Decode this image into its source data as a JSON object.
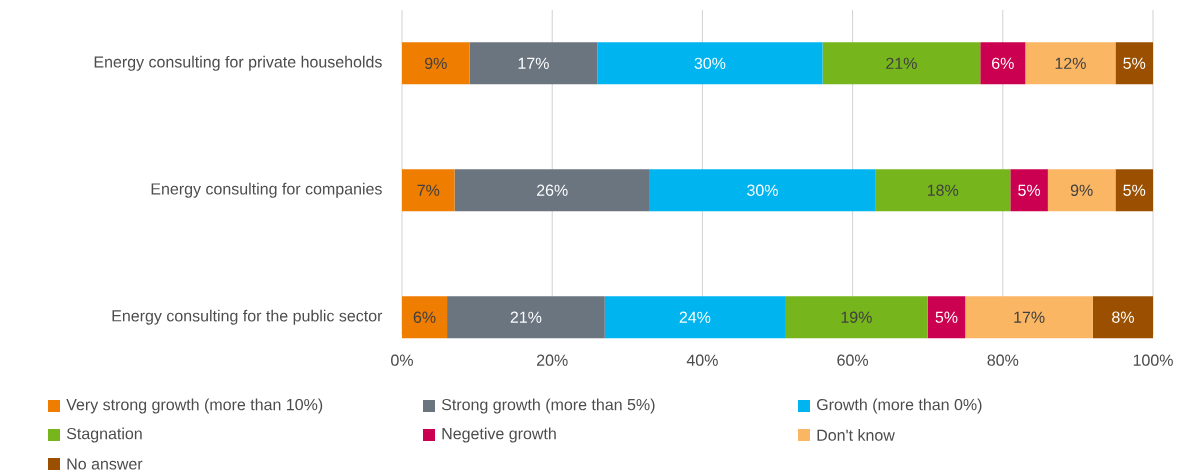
{
  "chart_data": {
    "type": "bar",
    "orientation": "horizontal",
    "stacked": true,
    "categories": [
      "Energy consulting for private households",
      "Energy consulting for companies",
      "Energy consulting for the public sector"
    ],
    "series": [
      {
        "name": "Very strong growth (more than 10%)",
        "color": "#ef7d00",
        "values": [
          9,
          7,
          6
        ],
        "value_labels": [
          "9%",
          "7%",
          "6%"
        ]
      },
      {
        "name": "Strong growth (more than 5%)",
        "color": "#6b7580",
        "values": [
          17,
          26,
          21
        ],
        "value_labels": [
          "17%",
          "26%",
          "21%"
        ]
      },
      {
        "name": "Growth (more than 0%)",
        "color": "#00b4f0",
        "values": [
          30,
          30,
          24
        ],
        "value_labels": [
          "30%",
          "30%",
          "24%"
        ]
      },
      {
        "name": "Stagnation",
        "color": "#76b51b",
        "values": [
          21,
          18,
          19
        ],
        "value_labels": [
          "21%",
          "18%",
          "19%"
        ]
      },
      {
        "name": "Negetive growth",
        "color": "#cc0050",
        "values": [
          6,
          5,
          5
        ],
        "value_labels": [
          "6%",
          "5%",
          "5%"
        ]
      },
      {
        "name": "Don't know",
        "color": "#fbb664",
        "values": [
          12,
          9,
          17
        ],
        "value_labels": [
          "12%",
          "9%",
          "17%"
        ]
      },
      {
        "name": "No answer",
        "color": "#9a5000",
        "values": [
          5,
          5,
          8
        ],
        "value_labels": [
          "5%",
          "5%",
          "8%"
        ]
      }
    ],
    "xlim": [
      0,
      100
    ],
    "xticks": [
      {
        "value": 0,
        "label": "0%"
      },
      {
        "value": 20,
        "label": "20%"
      },
      {
        "value": 40,
        "label": "40%"
      },
      {
        "value": 60,
        "label": "60%"
      },
      {
        "value": 80,
        "label": "80%"
      },
      {
        "value": 100,
        "label": "100%"
      }
    ],
    "grid": "x",
    "legend": "bottom"
  }
}
